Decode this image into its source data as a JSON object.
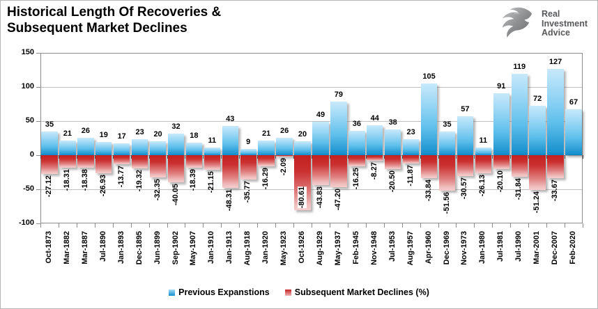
{
  "header": {
    "title_line1": "Historical Length Of Recoveries &",
    "title_line2": "Subsequent Market Declines"
  },
  "logo": {
    "line1": "Real",
    "line2": "Investment",
    "line3": "Advice"
  },
  "legend": {
    "items": [
      {
        "label": "Previous Expanstions",
        "color": "#1a92cf"
      },
      {
        "label": "Subsequent Market Declines (%)",
        "color": "#c32020"
      }
    ]
  },
  "colors": {
    "bar_positive_top": "#c7e9fb",
    "bar_positive_bottom": "#0e86c2",
    "bar_negative_top": "#c32020",
    "bar_negative_bottom": "#f5cdcd",
    "gridline": "#bfbfbf",
    "logo_text": "#58595b"
  },
  "chart_data": {
    "type": "bar",
    "title": "Historical Length Of Recoveries & Subsequent Market Declines",
    "categories": [
      "Oct-1873",
      "Mar-1882",
      "Mar-1887",
      "Jul-1890",
      "Jan-1893",
      "Dec-1895",
      "Jun-1899",
      "Sep-1902",
      "May-1907",
      "Jan-1910",
      "Jan-1913",
      "Aug-1918",
      "Jan-1920",
      "May-1923",
      "Oct-1926",
      "Aug-1929",
      "May-1937",
      "Feb-1945",
      "Nov-1948",
      "Jul-1953",
      "Aug-1957",
      "Apr-1960",
      "Dec-1969",
      "Nov-1973",
      "Jan-1980",
      "Jul-1981",
      "Jul-1990",
      "Mar-2001",
      "Dec-2007",
      "Feb-2020"
    ],
    "series": [
      {
        "name": "Previous Expanstions",
        "values": [
          35,
          21,
          26,
          19,
          17,
          23,
          20,
          32,
          18,
          11,
          43,
          9,
          21,
          26,
          20,
          49,
          79,
          36,
          44,
          38,
          23,
          105,
          35,
          57,
          11,
          91,
          119,
          72,
          127,
          67
        ]
      },
      {
        "name": "Subsequent Market Declines (%)",
        "values": [
          -27.12,
          -18.31,
          -18.38,
          -26.93,
          -13.77,
          -19.32,
          -32.35,
          -40.05,
          -18.39,
          -21.15,
          -48.31,
          -35.77,
          -16.29,
          -2.09,
          -80.61,
          -43.83,
          -47.2,
          -16.25,
          -8.27,
          -20.5,
          -11.87,
          -33.84,
          -51.56,
          -30.57,
          -26.13,
          -20.1,
          -31.84,
          -51.24,
          -33.67,
          null
        ]
      }
    ],
    "ylim": [
      -100,
      150
    ],
    "yticks": [
      150,
      100,
      50,
      0,
      -50,
      -100
    ],
    "grid": "horizontal",
    "legend_position": "bottom"
  }
}
